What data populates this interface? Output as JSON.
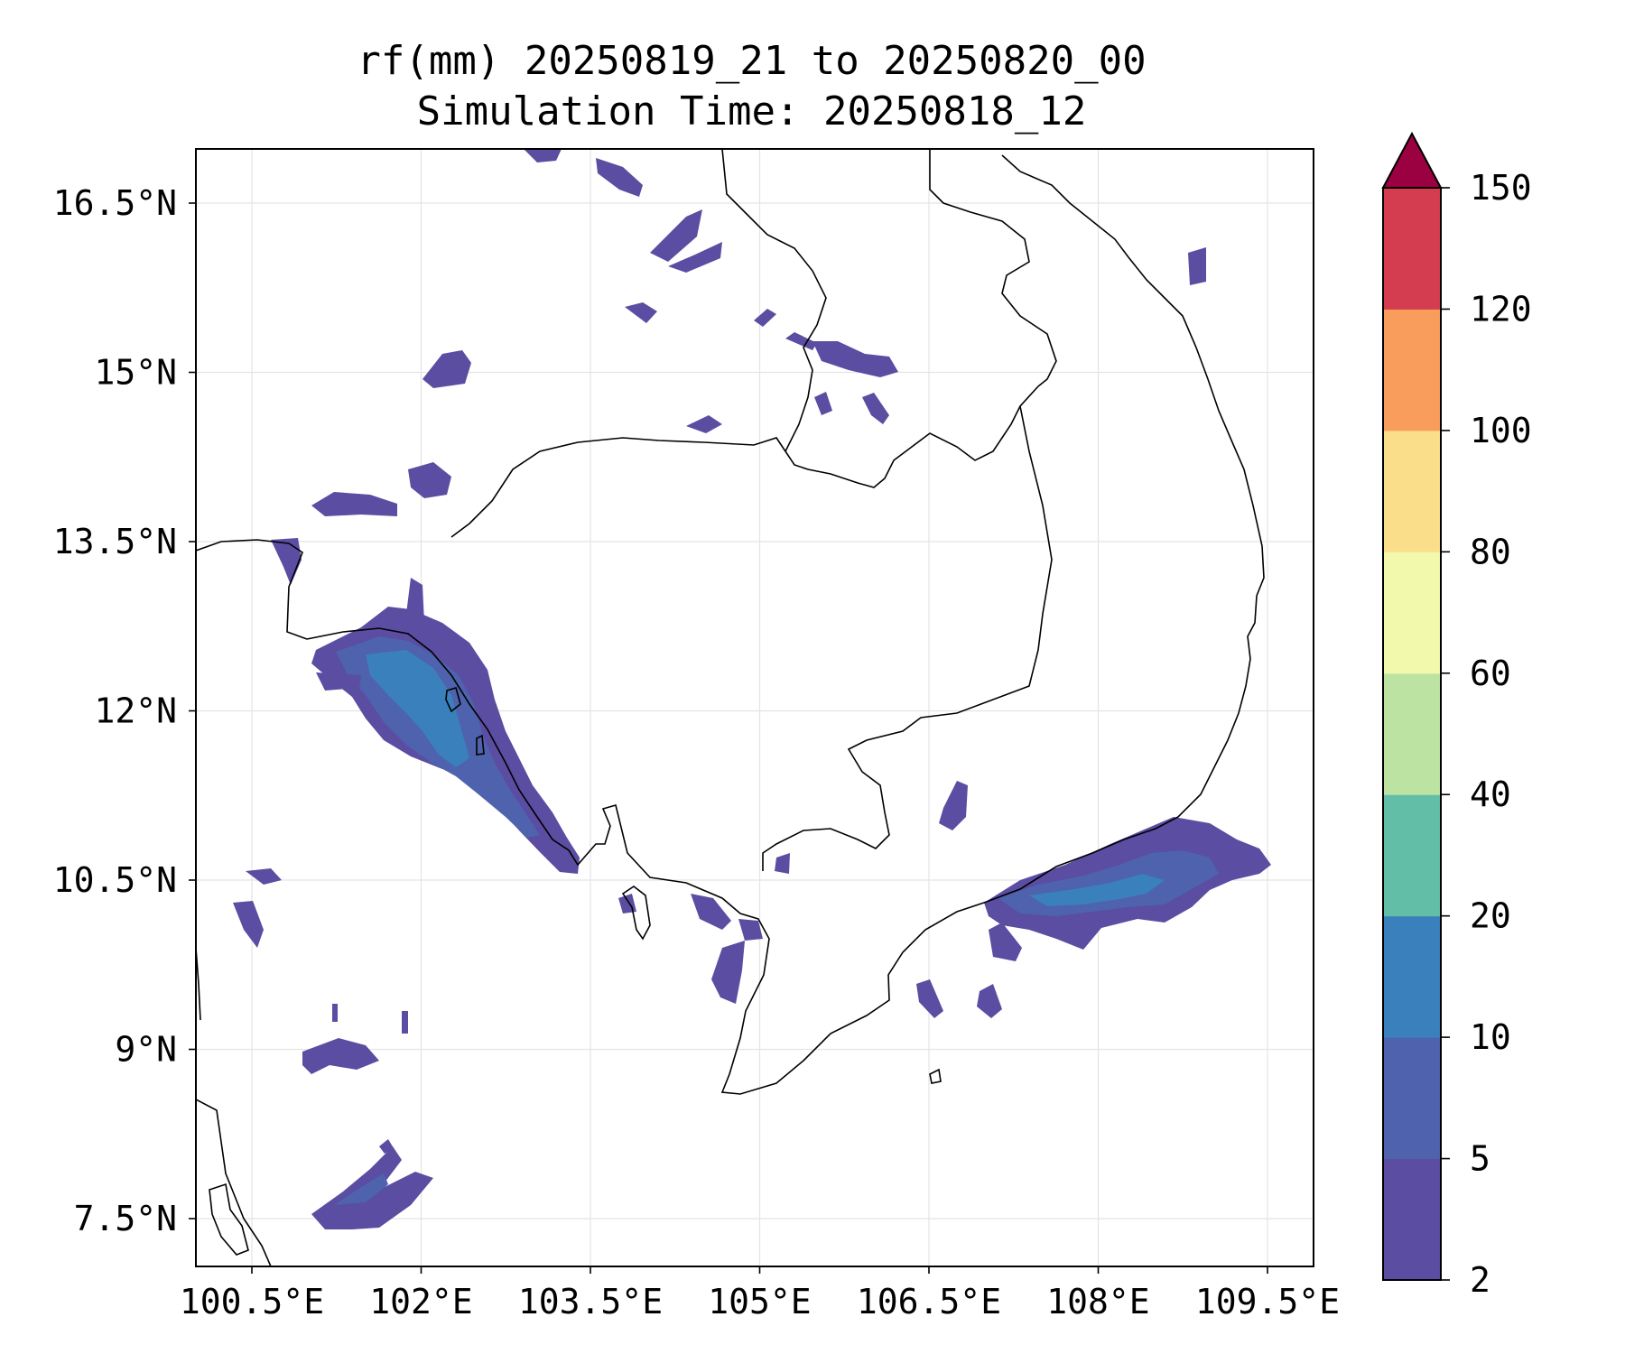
{
  "title": {
    "line1": "rf(mm) 20250819_21 to 20250820_00",
    "line2": "Simulation Time: 20250818_12"
  },
  "map": {
    "lat_ticks": [
      "16.5°N",
      "15°N",
      "13.5°N",
      "12°N",
      "10.5°N",
      "9°N",
      "7.5°N"
    ],
    "lon_ticks": [
      "100.5°E",
      "102°E",
      "103.5°E",
      "105°E",
      "106.5°E",
      "108°E",
      "109.5°E"
    ],
    "grid": true,
    "coastline_color": "#000000"
  },
  "colorbar": {
    "levels": [
      "2",
      "5",
      "10",
      "20",
      "40",
      "60",
      "80",
      "100",
      "120",
      "150"
    ],
    "colors": [
      "#5a4da2",
      "#4e62ad",
      "#3a80bc",
      "#63bea8",
      "#bde3a2",
      "#f2f9ad",
      "#fbde8a",
      "#f99d5c",
      "#d43d50",
      "#9b0041"
    ],
    "extend": "max"
  }
}
